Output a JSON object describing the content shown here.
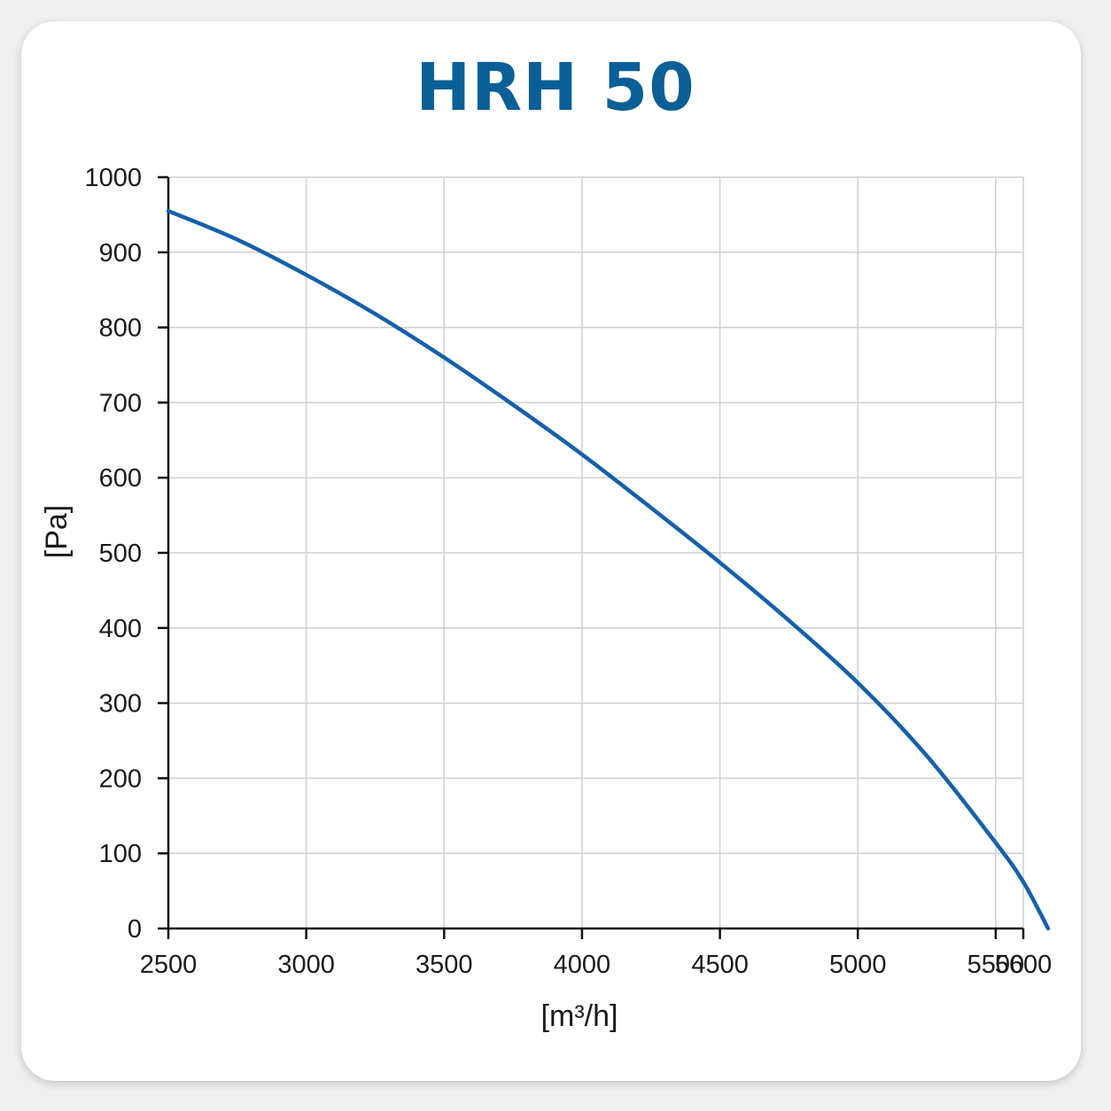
{
  "chart_data": {
    "type": "line",
    "title": "HRH 50",
    "xlabel": "[m³/h]",
    "ylabel": "[Pa]",
    "xlim": [
      2500,
      5600
    ],
    "ylim": [
      0,
      1000
    ],
    "x_ticks": [
      2500,
      3000,
      3500,
      4000,
      4500,
      5000,
      5500,
      5600
    ],
    "y_ticks": [
      0,
      100,
      200,
      300,
      400,
      500,
      600,
      700,
      800,
      900,
      1000
    ],
    "grid": true,
    "legend": "none",
    "series": [
      {
        "color": "#1560ab",
        "x": [
          2500,
          2750,
          3000,
          3250,
          3500,
          3750,
          4000,
          4250,
          4500,
          4750,
          5000,
          5250,
          5500,
          5600,
          5690
        ],
        "y": [
          955,
          917,
          870,
          818,
          760,
          697,
          631,
          560,
          487,
          410,
          327,
          230,
          114,
          62,
          0
        ]
      }
    ]
  }
}
